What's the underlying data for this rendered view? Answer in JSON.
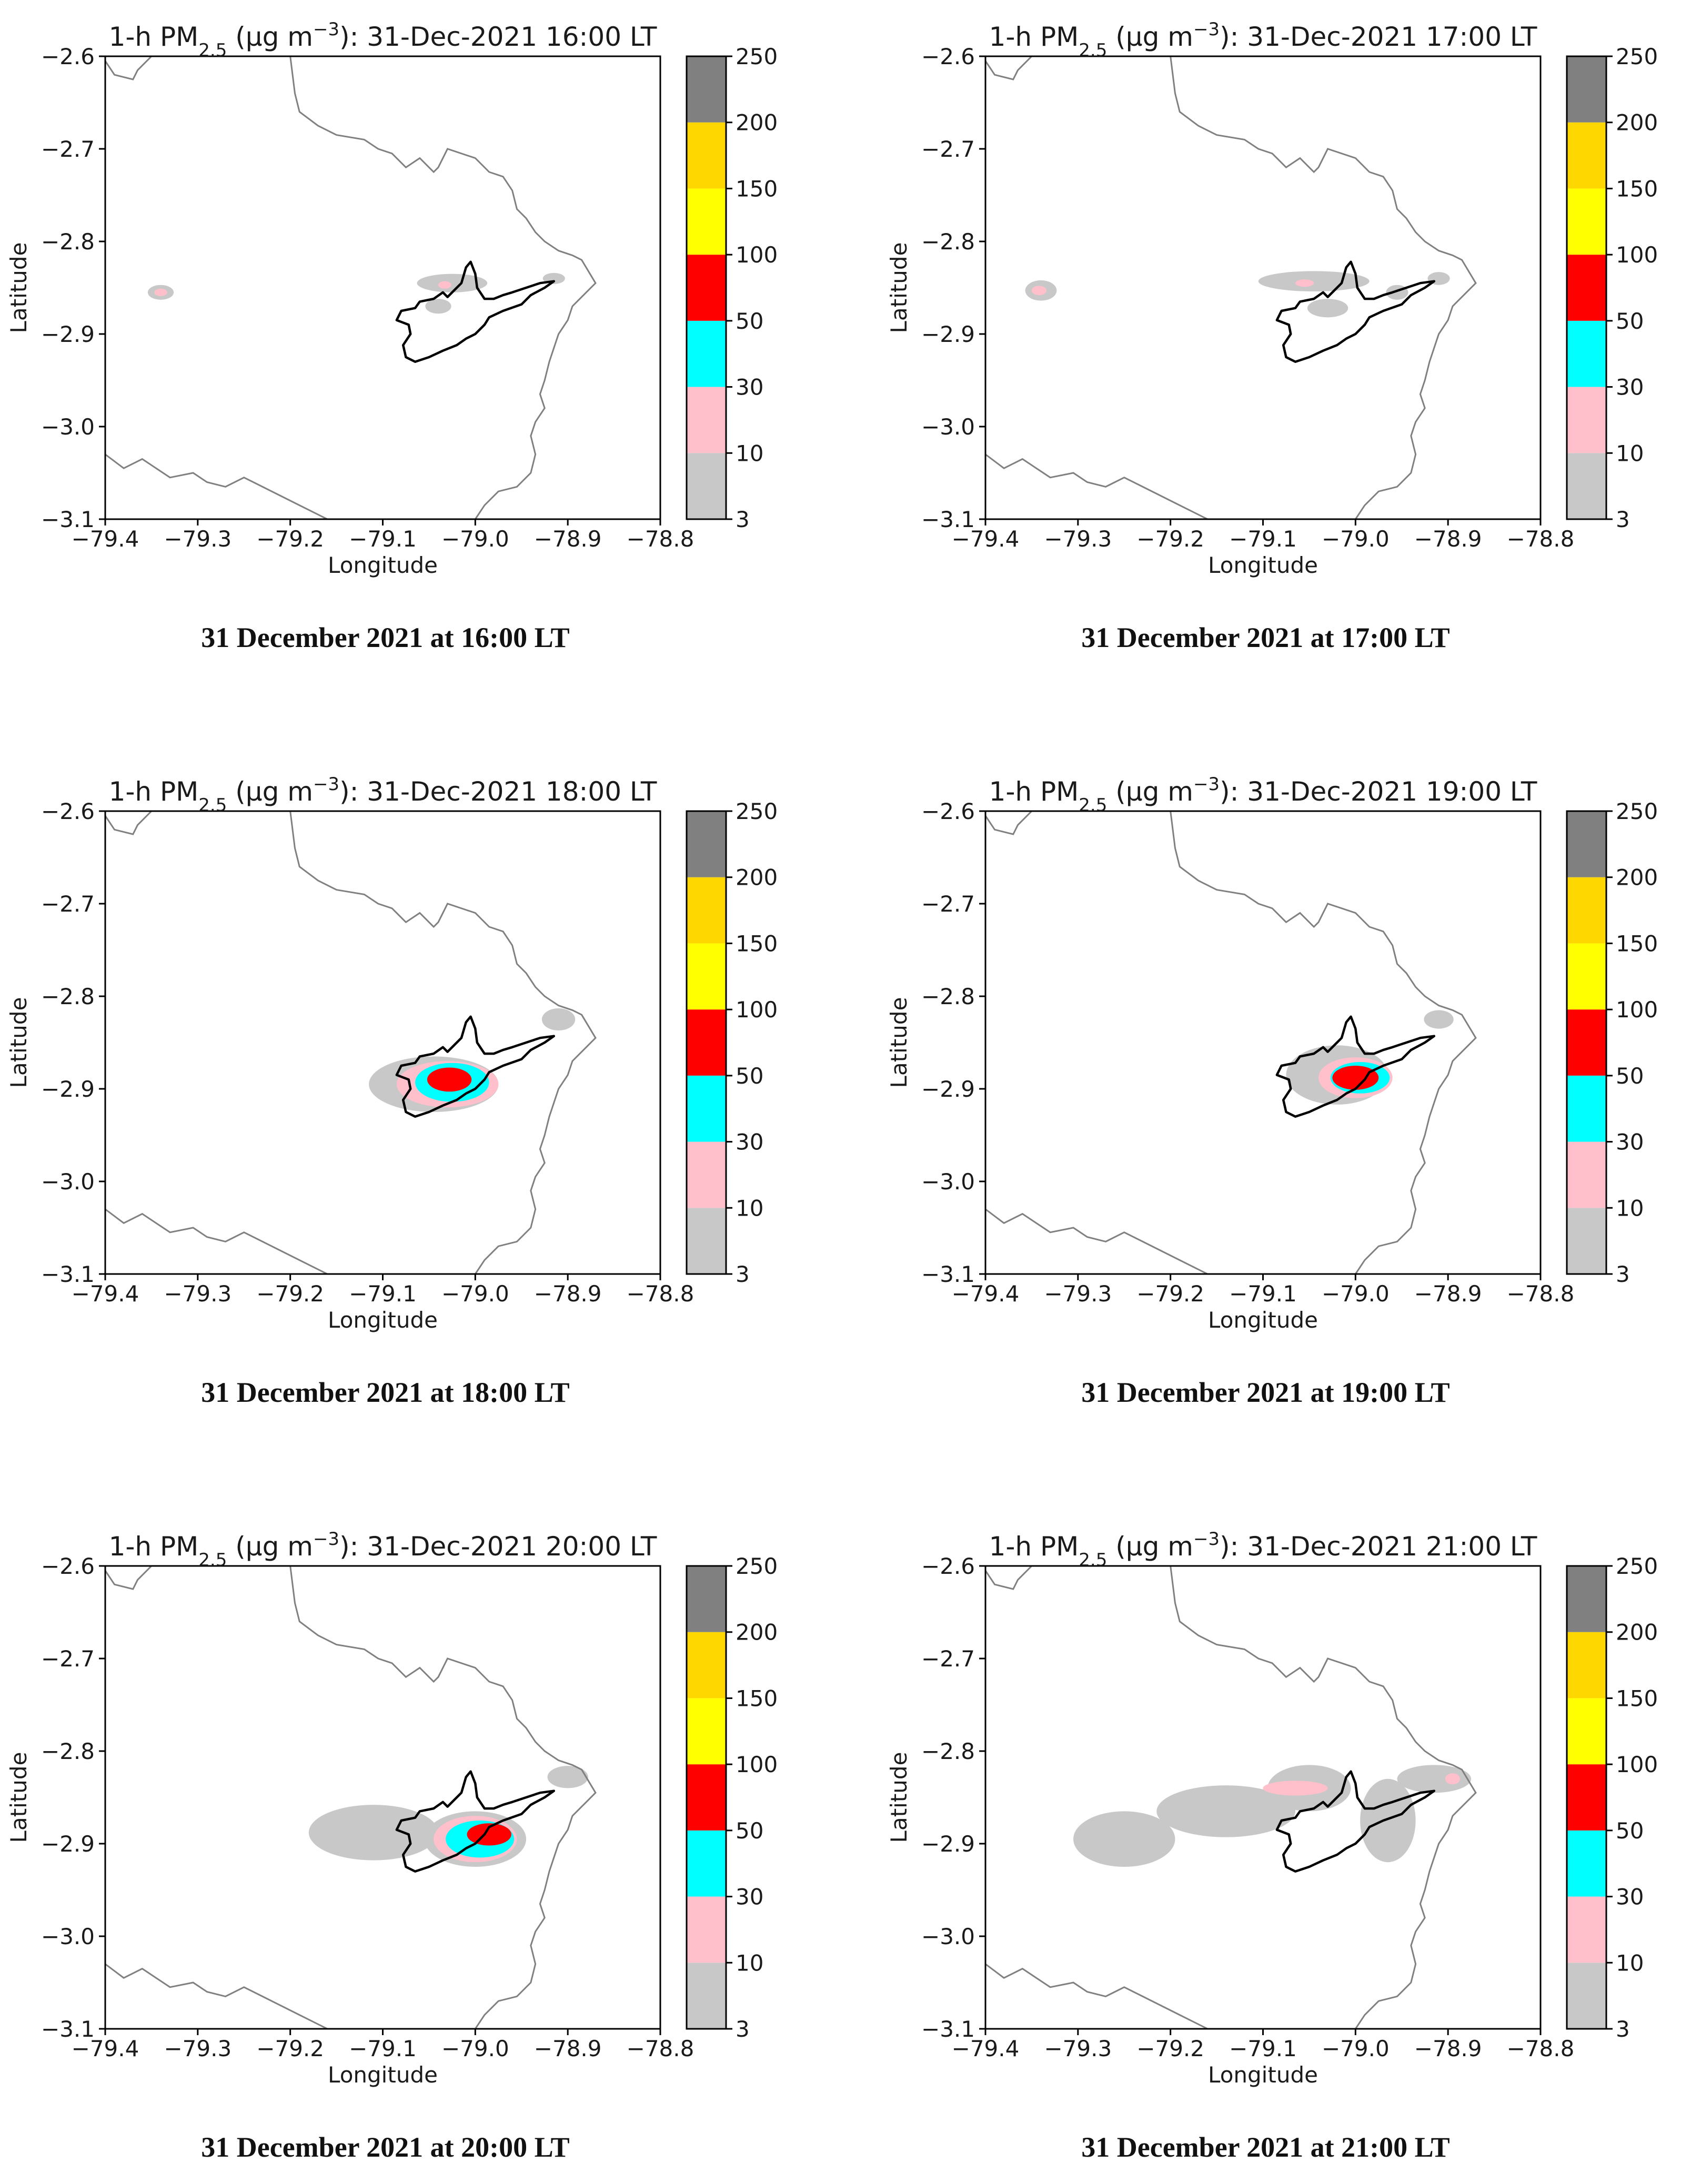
{
  "chart_data": [
    {
      "type": "heatmap",
      "title_parts": {
        "prefix": "1-h PM",
        "sub": "2.5",
        "mid": " (μg m",
        "sup": "−3",
        "suffix": "): 31-Dec-2021 16:00 LT"
      },
      "caption": "31 December 2021 at 16:00 LT",
      "xlabel": "Longitude",
      "ylabel": "Latitude",
      "xlim": [
        -79.4,
        -78.8
      ],
      "ylim": [
        -3.1,
        -2.6
      ],
      "xticks": [
        "−79.4",
        "−79.3",
        "−79.2",
        "−79.1",
        "−79.0",
        "−78.9",
        "−78.8"
      ],
      "yticks": [
        "−2.6",
        "−2.7",
        "−2.8",
        "−2.9",
        "−3.0",
        "−3.1"
      ],
      "colorbar_ticks": [
        "250",
        "200",
        "150",
        "100",
        "50",
        "30",
        "10",
        "3"
      ],
      "plumes": [
        {
          "level": "3-10",
          "lon": -79.34,
          "lat": -2.855,
          "rx": 0.014,
          "ry": 0.008
        },
        {
          "level": "10-30",
          "lon": -79.34,
          "lat": -2.855,
          "rx": 0.007,
          "ry": 0.004
        },
        {
          "level": "3-10",
          "lon": -79.025,
          "lat": -2.845,
          "rx": 0.038,
          "ry": 0.01
        },
        {
          "level": "10-30",
          "lon": -79.033,
          "lat": -2.847,
          "rx": 0.007,
          "ry": 0.004
        },
        {
          "level": "3-10",
          "lon": -79.04,
          "lat": -2.87,
          "rx": 0.014,
          "ry": 0.008
        },
        {
          "level": "3-10",
          "lon": -78.915,
          "lat": -2.84,
          "rx": 0.012,
          "ry": 0.006
        }
      ]
    },
    {
      "type": "heatmap",
      "title_parts": {
        "prefix": "1-h PM",
        "sub": "2.5",
        "mid": " (μg m",
        "sup": "−3",
        "suffix": "): 31-Dec-2021 17:00 LT"
      },
      "caption": "31 December 2021 at 17:00 LT",
      "xlabel": "Longitude",
      "ylabel": "Latitude",
      "xlim": [
        -79.4,
        -78.8
      ],
      "ylim": [
        -3.1,
        -2.6
      ],
      "xticks": [
        "−79.4",
        "−79.3",
        "−79.2",
        "−79.1",
        "−79.0",
        "−78.9",
        "−78.8"
      ],
      "yticks": [
        "−2.6",
        "−2.7",
        "−2.8",
        "−2.9",
        "−3.0",
        "−3.1"
      ],
      "colorbar_ticks": [
        "250",
        "200",
        "150",
        "100",
        "50",
        "30",
        "10",
        "3"
      ],
      "plumes": [
        {
          "level": "3-10",
          "lon": -79.34,
          "lat": -2.853,
          "rx": 0.017,
          "ry": 0.011
        },
        {
          "level": "10-30",
          "lon": -79.342,
          "lat": -2.853,
          "rx": 0.008,
          "ry": 0.005
        },
        {
          "level": "3-10",
          "lon": -79.045,
          "lat": -2.843,
          "rx": 0.06,
          "ry": 0.011
        },
        {
          "level": "10-30",
          "lon": -79.055,
          "lat": -2.845,
          "rx": 0.01,
          "ry": 0.004
        },
        {
          "level": "3-10",
          "lon": -79.03,
          "lat": -2.872,
          "rx": 0.022,
          "ry": 0.01
        },
        {
          "level": "3-10",
          "lon": -78.955,
          "lat": -2.855,
          "rx": 0.012,
          "ry": 0.008
        },
        {
          "level": "3-10",
          "lon": -78.91,
          "lat": -2.84,
          "rx": 0.012,
          "ry": 0.007
        }
      ]
    },
    {
      "type": "heatmap",
      "title_parts": {
        "prefix": "1-h PM",
        "sub": "2.5",
        "mid": " (μg m",
        "sup": "−3",
        "suffix": "): 31-Dec-2021 18:00 LT"
      },
      "caption": "31 December 2021 at 18:00 LT",
      "xlabel": "Longitude",
      "ylabel": "Latitude",
      "xlim": [
        -79.4,
        -78.8
      ],
      "ylim": [
        -3.1,
        -2.6
      ],
      "xticks": [
        "−79.4",
        "−79.3",
        "−79.2",
        "−79.1",
        "−79.0",
        "−78.9",
        "−78.8"
      ],
      "yticks": [
        "−2.6",
        "−2.7",
        "−2.8",
        "−2.9",
        "−3.0",
        "−3.1"
      ],
      "colorbar_ticks": [
        "250",
        "200",
        "150",
        "100",
        "50",
        "30",
        "10",
        "3"
      ],
      "plumes": [
        {
          "level": "3-10",
          "lon": -79.045,
          "lat": -2.895,
          "rx": 0.07,
          "ry": 0.03
        },
        {
          "level": "10-30",
          "lon": -79.03,
          "lat": -2.895,
          "rx": 0.055,
          "ry": 0.025
        },
        {
          "level": "30-50",
          "lon": -79.025,
          "lat": -2.893,
          "rx": 0.04,
          "ry": 0.021
        },
        {
          "level": "50-100",
          "lon": -79.028,
          "lat": -2.89,
          "rx": 0.024,
          "ry": 0.013
        },
        {
          "level": "3-10",
          "lon": -78.91,
          "lat": -2.825,
          "rx": 0.018,
          "ry": 0.012
        }
      ]
    },
    {
      "type": "heatmap",
      "title_parts": {
        "prefix": "1-h PM",
        "sub": "2.5",
        "mid": " (μg m",
        "sup": "−3",
        "suffix": "): 31-Dec-2021 19:00 LT"
      },
      "caption": "31 December 2021 at 19:00 LT",
      "xlabel": "Longitude",
      "ylabel": "Latitude",
      "xlim": [
        -79.4,
        -78.8
      ],
      "ylim": [
        -3.1,
        -2.6
      ],
      "xticks": [
        "−79.4",
        "−79.3",
        "−79.2",
        "−79.1",
        "−79.0",
        "−78.9",
        "−78.8"
      ],
      "yticks": [
        "−2.6",
        "−2.7",
        "−2.8",
        "−2.9",
        "−3.0",
        "−3.1"
      ],
      "colorbar_ticks": [
        "250",
        "200",
        "150",
        "100",
        "50",
        "30",
        "10",
        "3"
      ],
      "plumes": [
        {
          "level": "3-10",
          "lon": -79.02,
          "lat": -2.885,
          "rx": 0.055,
          "ry": 0.032
        },
        {
          "level": "10-30",
          "lon": -79.0,
          "lat": -2.888,
          "rx": 0.04,
          "ry": 0.022
        },
        {
          "level": "30-50",
          "lon": -78.995,
          "lat": -2.888,
          "rx": 0.032,
          "ry": 0.017
        },
        {
          "level": "50-100",
          "lon": -79.0,
          "lat": -2.888,
          "rx": 0.025,
          "ry": 0.013
        },
        {
          "level": "3-10",
          "lon": -78.91,
          "lat": -2.825,
          "rx": 0.016,
          "ry": 0.01
        }
      ]
    },
    {
      "type": "heatmap",
      "title_parts": {
        "prefix": "1-h PM",
        "sub": "2.5",
        "mid": " (μg m",
        "sup": "−3",
        "suffix": "): 31-Dec-2021 20:00 LT"
      },
      "caption": "31 December 2021 at 20:00 LT",
      "xlabel": "Longitude",
      "ylabel": "Latitude",
      "xlim": [
        -79.4,
        -78.8
      ],
      "ylim": [
        -3.1,
        -2.6
      ],
      "xticks": [
        "−79.4",
        "−79.3",
        "−79.2",
        "−79.1",
        "−79.0",
        "−78.9",
        "−78.8"
      ],
      "yticks": [
        "−2.6",
        "−2.7",
        "−2.8",
        "−2.9",
        "−3.0",
        "−3.1"
      ],
      "colorbar_ticks": [
        "250",
        "200",
        "150",
        "100",
        "50",
        "30",
        "10",
        "3"
      ],
      "plumes": [
        {
          "level": "3-10",
          "lon": -79.11,
          "lat": -2.888,
          "rx": 0.07,
          "ry": 0.03
        },
        {
          "level": "3-10",
          "lon": -79.0,
          "lat": -2.895,
          "rx": 0.055,
          "ry": 0.03
        },
        {
          "level": "10-30",
          "lon": -79.0,
          "lat": -2.895,
          "rx": 0.045,
          "ry": 0.025
        },
        {
          "level": "30-50",
          "lon": -78.995,
          "lat": -2.895,
          "rx": 0.037,
          "ry": 0.02
        },
        {
          "level": "50-100",
          "lon": -78.985,
          "lat": -2.89,
          "rx": 0.024,
          "ry": 0.012
        },
        {
          "level": "3-10",
          "lon": -78.9,
          "lat": -2.828,
          "rx": 0.022,
          "ry": 0.012
        }
      ]
    },
    {
      "type": "heatmap",
      "title_parts": {
        "prefix": "1-h PM",
        "sub": "2.5",
        "mid": " (μg m",
        "sup": "−3",
        "suffix": "): 31-Dec-2021 21:00 LT"
      },
      "caption": "31 December 2021 at 21:00 LT",
      "xlabel": "Longitude",
      "ylabel": "Latitude",
      "xlim": [
        -79.4,
        -78.8
      ],
      "ylim": [
        -3.1,
        -2.6
      ],
      "xticks": [
        "−79.4",
        "−79.3",
        "−79.2",
        "−79.1",
        "−79.0",
        "−78.9",
        "−78.8"
      ],
      "yticks": [
        "−2.6",
        "−2.7",
        "−2.8",
        "−2.9",
        "−3.0",
        "−3.1"
      ],
      "colorbar_ticks": [
        "250",
        "200",
        "150",
        "100",
        "50",
        "30",
        "10",
        "3"
      ],
      "plumes": [
        {
          "level": "3-10",
          "lon": -79.25,
          "lat": -2.895,
          "rx": 0.055,
          "ry": 0.03
        },
        {
          "level": "3-10",
          "lon": -79.14,
          "lat": -2.865,
          "rx": 0.075,
          "ry": 0.028
        },
        {
          "level": "3-10",
          "lon": -79.05,
          "lat": -2.84,
          "rx": 0.045,
          "ry": 0.025
        },
        {
          "level": "10-30",
          "lon": -79.065,
          "lat": -2.84,
          "rx": 0.035,
          "ry": 0.008
        },
        {
          "level": "3-10",
          "lon": -78.965,
          "lat": -2.875,
          "rx": 0.03,
          "ry": 0.045
        },
        {
          "level": "3-10",
          "lon": -78.915,
          "lat": -2.83,
          "rx": 0.04,
          "ry": 0.015
        },
        {
          "level": "10-30",
          "lon": -78.895,
          "lat": -2.83,
          "rx": 0.008,
          "ry": 0.006
        }
      ]
    }
  ],
  "colorbar_levels": [
    {
      "range": "3-10",
      "color": "#c8c8c8"
    },
    {
      "range": "10-30",
      "color": "#ffc0cb"
    },
    {
      "range": "30-50",
      "color": "#00ffff"
    },
    {
      "range": "50-100",
      "color": "#ff0000"
    },
    {
      "range": "100-150",
      "color": "#ffff00"
    },
    {
      "range": "150-200",
      "color": "#ffd700"
    },
    {
      "range": "200-250",
      "color": "#808080"
    }
  ]
}
